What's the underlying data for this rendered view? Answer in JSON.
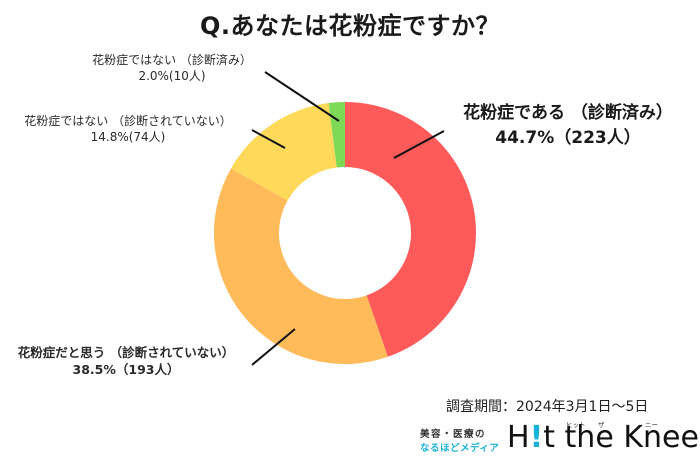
{
  "title": "Q.あなたは花粉症ですか？",
  "labels": {
    "green": {
      "line1": "花粉症ではない （診断済み）",
      "line2": "2.0%(10人)"
    },
    "yellow": {
      "line1": "花粉症ではない （診断されていない）",
      "line2": "14.8%(74人)"
    },
    "red": {
      "line1": "花粉症である （診断済み）",
      "line2": "44.7%（223人）"
    },
    "orange": {
      "line1": "花粉症だと思う （診断されていない）",
      "line2": "38.5%（193人）"
    }
  },
  "survey_period": "調査期間：2024年3月1日～5日",
  "logo": {
    "sub_line1": "美容・医療の",
    "sub_line2": "なるほどメディア",
    "h": "H",
    "bang": "!",
    "rest": "t the Knee",
    "ruby_hit": "ヒット",
    "ruby_the": "ザ",
    "ruby_knee": "ニー"
  },
  "colors": {
    "red": "#ff5a5a",
    "orange": "#ffbb5a",
    "yellow": "#ffda5a",
    "green": "#7ed957",
    "accent": "#1ab0d8"
  },
  "chart_data": {
    "type": "pie",
    "subtype": "donut",
    "title": "Q.あなたは花粉症ですか？",
    "categories": [
      "花粉症である（診断済み）",
      "花粉症だと思う（診断されていない）",
      "花粉症ではない（診断されていない）",
      "花粉症ではない（診断済み）"
    ],
    "values": [
      44.7,
      38.5,
      14.8,
      2.0
    ],
    "counts": [
      223,
      193,
      74,
      10
    ],
    "unit": "%",
    "colors": [
      "#ff5a5a",
      "#ffbb5a",
      "#ffda5a",
      "#7ed957"
    ],
    "start_angle": "12 o'clock",
    "direction": "clockwise",
    "legend": "none (direct labels with leader lines)",
    "annotation": "調査期間：2024年3月1日～5日"
  }
}
